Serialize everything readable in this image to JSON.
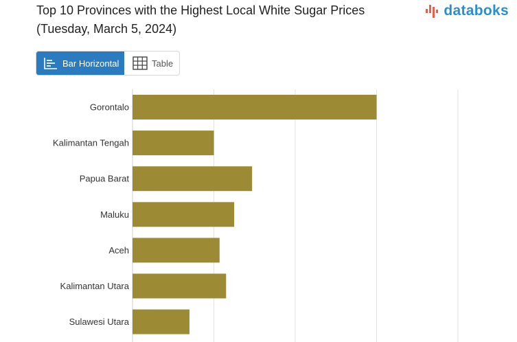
{
  "header": {
    "title_line1": "Top 10 Provinces with the Highest Local White Sugar Prices",
    "title_line2": "(Tuesday, March 5, 2024)"
  },
  "logo": {
    "text": "databoks",
    "icon": "databoks-logo-icon",
    "color": "#2a8fcf",
    "accent": "#e8604c"
  },
  "tabs": [
    {
      "label": "Bar Horizontal",
      "icon": "bar-horizontal-icon",
      "active": true
    },
    {
      "label": "Table",
      "icon": "table-grid-icon",
      "active": false
    }
  ],
  "chart_data": {
    "type": "bar",
    "orientation": "horizontal",
    "categories": [
      "Gorontalo",
      "Kalimantan Tengah",
      "Papua Barat",
      "Maluku",
      "Aceh",
      "Kalimantan Utara",
      "Sulawesi Utara"
    ],
    "values": [
      3.0,
      1.0,
      1.47,
      1.25,
      1.07,
      1.15,
      0.7
    ],
    "xlim": [
      0,
      4
    ],
    "grid": true,
    "bar_color": "#9c8b34"
  }
}
